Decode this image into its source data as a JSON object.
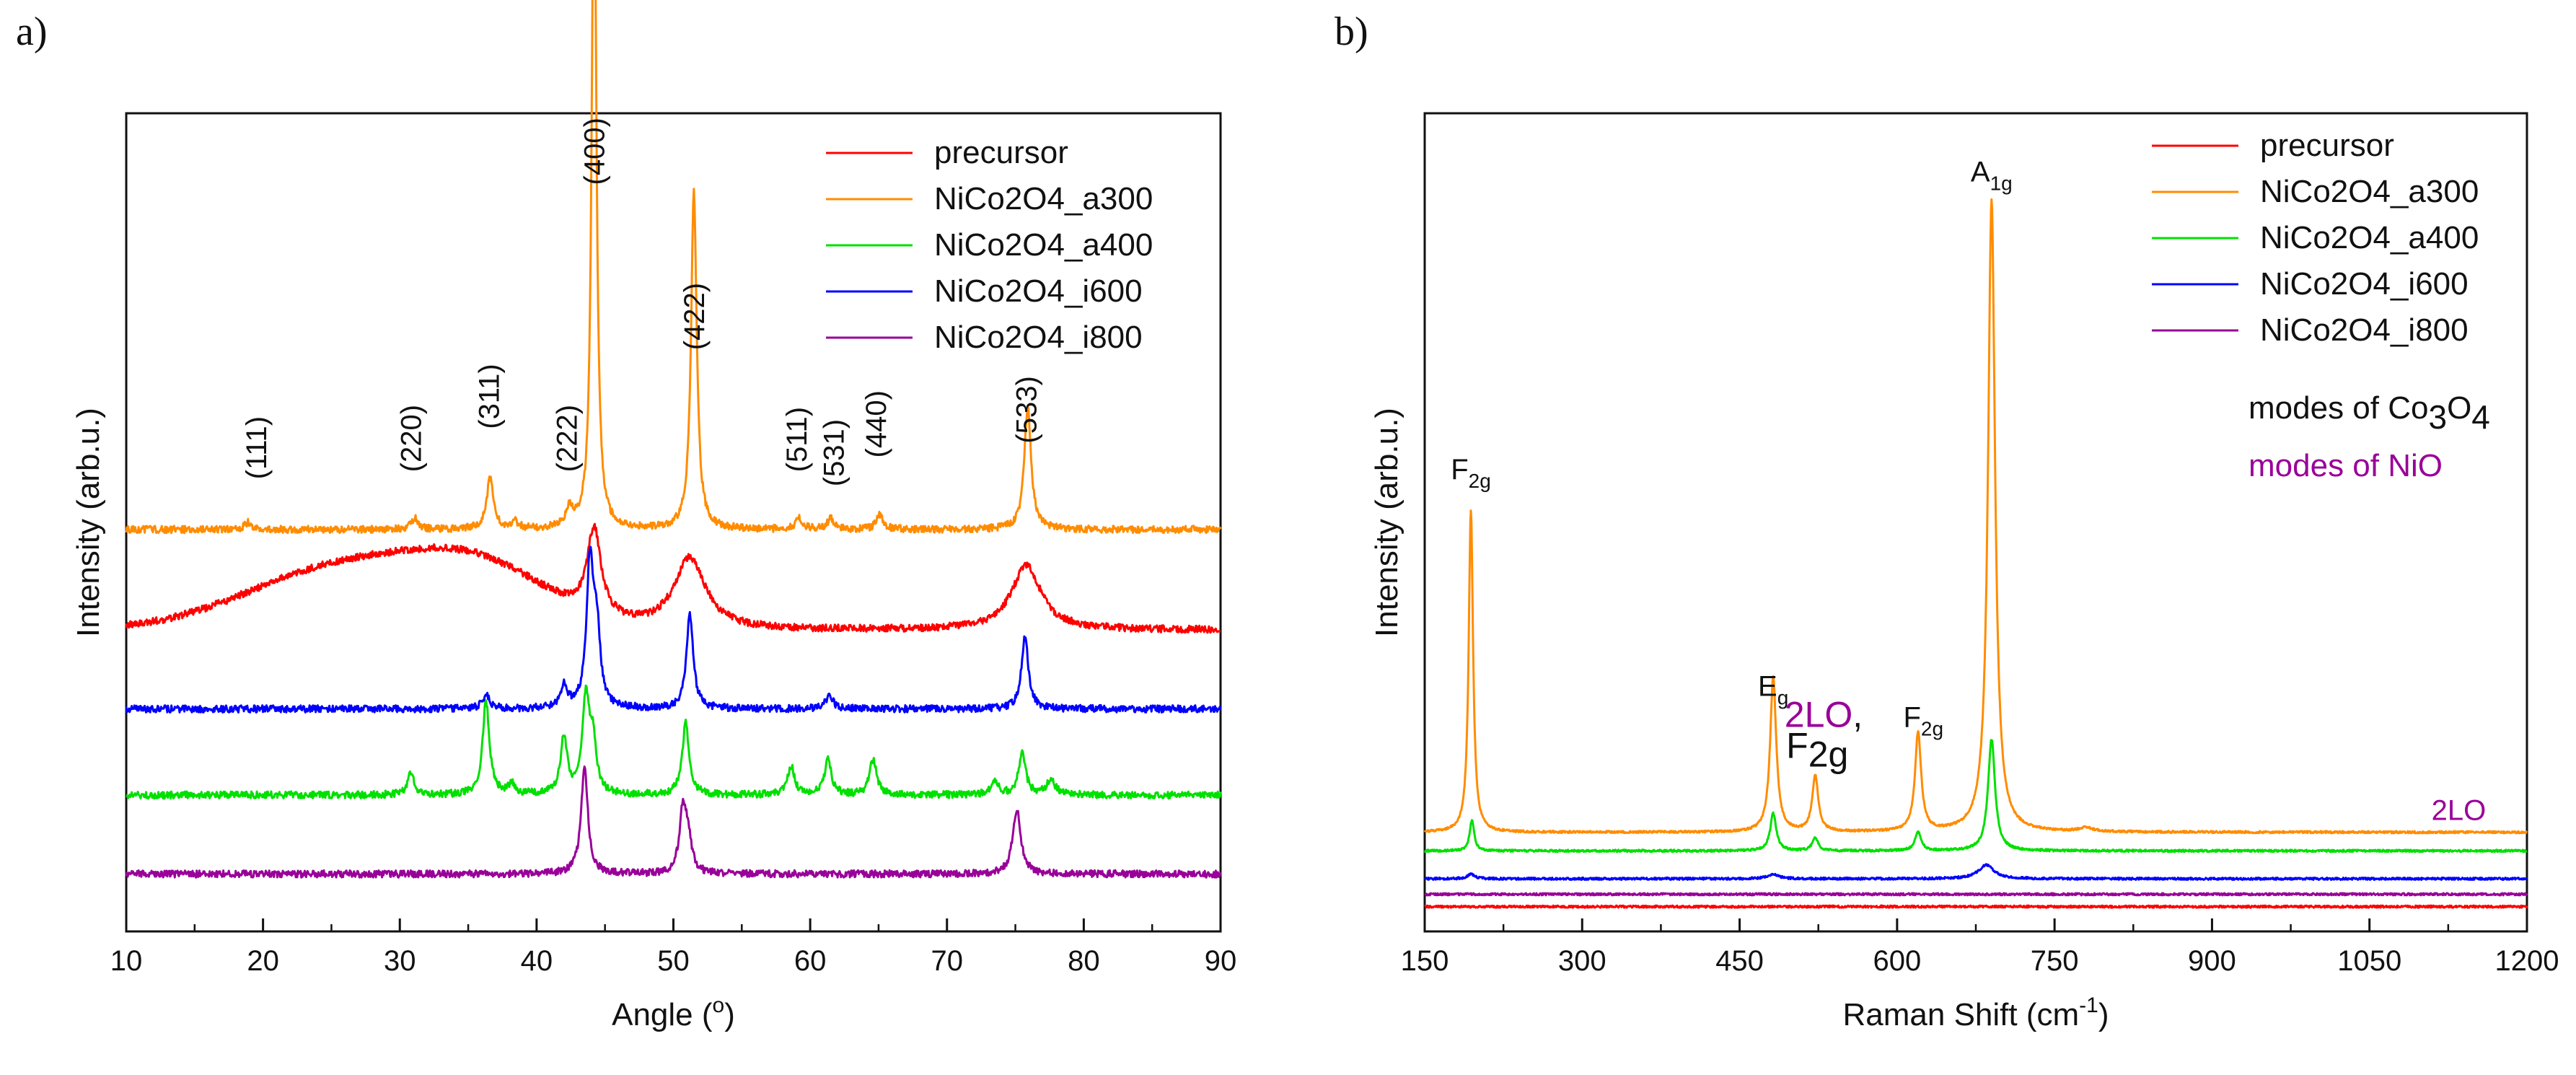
{
  "chart_data": [
    {
      "panel": "a)",
      "type": "line",
      "xlabel": "Angle (°)",
      "ylabel": "Intensity (arb.u.)",
      "xlim": [
        10,
        90
      ],
      "xticks": [
        10,
        20,
        30,
        40,
        50,
        60,
        70,
        80,
        90
      ],
      "grid": false,
      "legend": "top-right",
      "series": [
        {
          "name": "precursor",
          "color": "#ff0000",
          "base": 42,
          "hump": 16,
          "peaks": [
            [
              44.2,
              12,
              0.6
            ],
            [
              51.2,
              10,
              1.4
            ],
            [
              75.8,
              9,
              1.3
            ]
          ]
        },
        {
          "name": "NiCo2O4_a300",
          "color": "#ff8c00",
          "base": 56,
          "hump": 0,
          "peaks": [
            [
              18.9,
              1.0,
              0.3
            ],
            [
              31.1,
              1.5,
              0.3
            ],
            [
              36.6,
              7,
              0.3
            ],
            [
              38.4,
              1,
              0.3
            ],
            [
              42.4,
              2.5,
              0.3
            ],
            [
              44.2,
              100,
              0.2
            ],
            [
              51.5,
              47,
              0.25
            ],
            [
              59.2,
              1.5,
              0.3
            ],
            [
              61.5,
              1.5,
              0.3
            ],
            [
              65.1,
              2,
              0.3
            ],
            [
              75.9,
              17,
              0.3
            ]
          ]
        },
        {
          "name": "NiCo2O4_a400",
          "color": "#00e000",
          "base": 19,
          "hump": 0,
          "peaks": [
            [
              30.8,
              3,
              0.3
            ],
            [
              36.3,
              13,
              0.3
            ],
            [
              38.2,
              1.5,
              0.3
            ],
            [
              42.0,
              8,
              0.3
            ],
            [
              43.6,
              13,
              0.3
            ],
            [
              44.1,
              7,
              0.3
            ],
            [
              50.9,
              10,
              0.3
            ],
            [
              58.6,
              4,
              0.3
            ],
            [
              61.3,
              5,
              0.3
            ],
            [
              64.6,
              5,
              0.3
            ],
            [
              73.5,
              2,
              0.3
            ],
            [
              75.5,
              6,
              0.3
            ],
            [
              77.6,
              2,
              0.4
            ]
          ]
        },
        {
          "name": "NiCo2O4_i600",
          "color": "#0000ff",
          "base": 31,
          "hump": 0,
          "peaks": [
            [
              36.3,
              2,
              0.3
            ],
            [
              42.0,
              3,
              0.3
            ],
            [
              43.9,
              20,
              0.3
            ],
            [
              44.4,
              10,
              0.3
            ],
            [
              51.2,
              13,
              0.3
            ],
            [
              61.4,
              2,
              0.3
            ],
            [
              75.7,
              10,
              0.3
            ]
          ]
        },
        {
          "name": "NiCo2O4_i800",
          "color": "#990099",
          "base": 8,
          "hump": 0,
          "peaks": [
            [
              43.5,
              15,
              0.3
            ],
            [
              50.7,
              9,
              0.3
            ],
            [
              51.1,
              4,
              0.3
            ],
            [
              75.1,
              9,
              0.35
            ]
          ]
        }
      ],
      "annotations": [
        {
          "text": "(111)",
          "x": 19.5,
          "y": 63
        },
        {
          "text": "(220)",
          "x": 30.8,
          "y": 64
        },
        {
          "text": "(311)",
          "x": 36.5,
          "y": 70
        },
        {
          "text": "(222)",
          "x": 42.2,
          "y": 64
        },
        {
          "text": "(400)",
          "x": 44.2,
          "y": 104
        },
        {
          "text": "(422)",
          "x": 51.5,
          "y": 81
        },
        {
          "text": "(511)",
          "x": 59.0,
          "y": 64
        },
        {
          "text": "(531)",
          "x": 61.7,
          "y": 62
        },
        {
          "text": "(440)",
          "x": 64.8,
          "y": 66
        },
        {
          "text": "(533)",
          "x": 75.8,
          "y": 68
        }
      ]
    },
    {
      "panel": "b)",
      "type": "line",
      "xlabel": "Raman Shift (cm⁻¹)",
      "ylabel": "Intensity (arb.u.)",
      "xlim": [
        150,
        1200
      ],
      "xticks": [
        150,
        300,
        450,
        600,
        750,
        900,
        1050,
        1200
      ],
      "grid": false,
      "legend": "top-right",
      "series": [
        {
          "name": "precursor",
          "color": "#ff0000",
          "base": 4,
          "peaks": []
        },
        {
          "name": "NiCo2O4_a300",
          "color": "#ff8c00",
          "base": 16,
          "peaks": [
            [
              194,
              52,
              2.5
            ],
            [
              482,
              25,
              3.5
            ],
            [
              522,
              9,
              3.5
            ],
            [
              620,
              16,
              3.5
            ],
            [
              690,
              102,
              4
            ],
            [
              780,
              0.6,
              8
            ]
          ]
        },
        {
          "name": "NiCo2O4_a400",
          "color": "#00e000",
          "base": 13,
          "peaks": [
            [
              195,
              5,
              2.5
            ],
            [
              482,
              6,
              3.5
            ],
            [
              522,
              2,
              3.5
            ],
            [
              620,
              3,
              3.5
            ],
            [
              690,
              18,
              4
            ]
          ]
        },
        {
          "name": "NiCo2O4_i600",
          "color": "#0000ff",
          "base": 8.5,
          "peaks": [
            [
              194,
              0.8,
              4
            ],
            [
              482,
              0.8,
              6
            ],
            [
              685,
              2.2,
              9
            ]
          ]
        },
        {
          "name": "NiCo2O4_i800",
          "color": "#990099",
          "base": 6,
          "peaks": []
        }
      ],
      "annotations": [
        {
          "text": "F",
          "sub": "2g",
          "x": 194,
          "y": 73,
          "color": "#111111",
          "size": "normal"
        },
        {
          "text": "E",
          "sub": "g",
          "x": 482,
          "y": 38,
          "color": "#111111",
          "size": "normal"
        },
        {
          "text": "2LO",
          "x": 530,
          "y": 33,
          "color": "#990099",
          "size": "big",
          "suffix": ","
        },
        {
          "text": "F",
          "sub": "2g",
          "x": 625,
          "y": 33,
          "color": "#111111",
          "size": "normal"
        },
        {
          "text": "F",
          "sub": "2g",
          "x": 524,
          "y": 28,
          "color": "#111111",
          "size": "big"
        },
        {
          "text": "A",
          "sub": "1g",
          "x": 690,
          "y": 121,
          "color": "#111111",
          "size": "normal"
        },
        {
          "text": "2LO",
          "x": 1135,
          "y": 18,
          "color": "#990099",
          "size": "normal"
        }
      ],
      "mode_labels": [
        {
          "text": "modes of Co",
          "sub": "3",
          "text2": "O",
          "sub2": "4",
          "color": "#111111"
        },
        {
          "text": "modes of NiO",
          "color": "#990099"
        }
      ]
    }
  ]
}
